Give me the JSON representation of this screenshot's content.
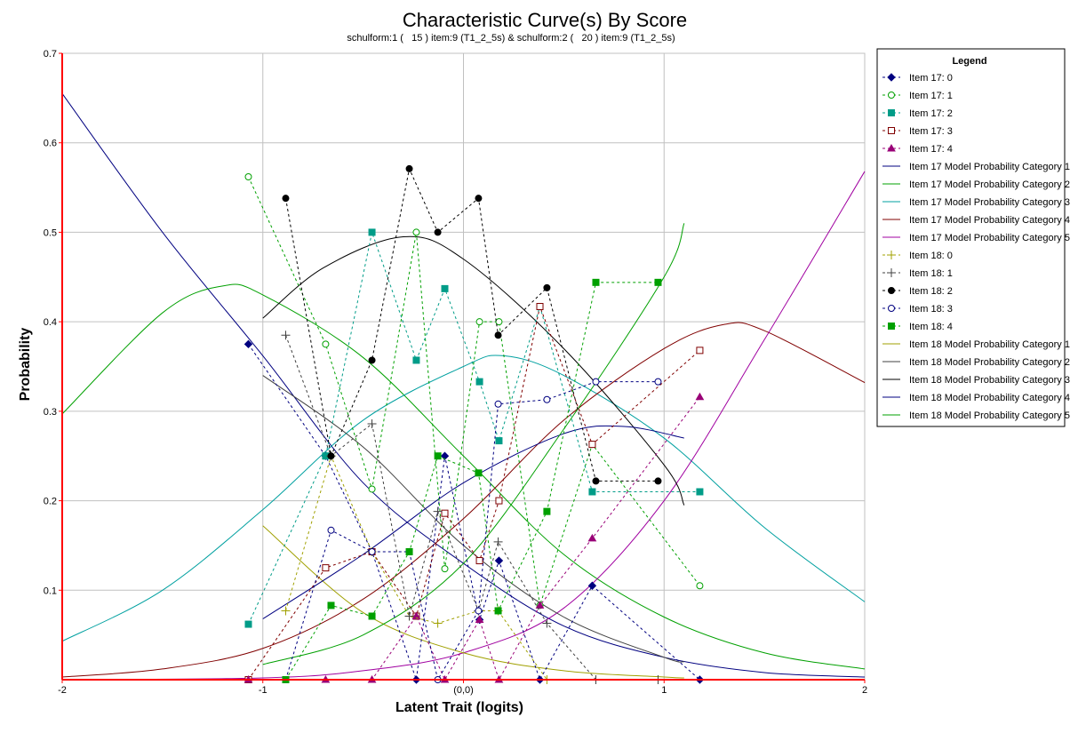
{
  "chart_data": {
    "type": "line",
    "title": "Characteristic Curve(s) By Score",
    "subtitle": "schulform:1 (   15 ) item:9 (T1_2_5s) & schulform:2 (   20 ) item:9 (T1_2_5s)",
    "xlabel": "Latent Trait (logits)",
    "ylabel": "Probability",
    "xlim": [
      -2,
      2
    ],
    "ylim": [
      0,
      0.7
    ],
    "xticks": [
      {
        "v": -2,
        "label": "-2"
      },
      {
        "v": -1,
        "label": "-1"
      },
      {
        "v": 0,
        "label": "(0,0)"
      },
      {
        "v": 1,
        "label": "1"
      },
      {
        "v": 2,
        "label": "2"
      }
    ],
    "yticks": [
      {
        "v": 0.1,
        "label": "0.1"
      },
      {
        "v": 0.2,
        "label": "0.2"
      },
      {
        "v": 0.3,
        "label": "0.3"
      },
      {
        "v": 0.4,
        "label": "0.4"
      },
      {
        "v": 0.5,
        "label": "0.5"
      },
      {
        "v": 0.6,
        "label": "0.6"
      },
      {
        "v": 0.7,
        "label": "0.7"
      }
    ],
    "grid": true,
    "legend": {
      "title": "Legend",
      "placement": "right"
    },
    "observed": [
      {
        "name": "Item 17: 0",
        "color": "#000080",
        "marker": "diamond",
        "fill": true,
        "x": [
          -1.072,
          -0.687,
          -0.456,
          -0.235,
          -0.093,
          0.08,
          0.177,
          0.381,
          0.642,
          1.178
        ],
        "y": [
          0.375,
          0.25,
          0.143,
          0.0,
          0.25,
          0.067,
          0.133,
          0.0,
          0.105,
          0.0
        ]
      },
      {
        "name": "Item 17: 1",
        "color": "#00a000",
        "marker": "circle",
        "fill": false,
        "x": [
          -1.072,
          -0.687,
          -0.456,
          -0.235,
          -0.093,
          0.08,
          0.177,
          0.381,
          0.642,
          1.178
        ],
        "y": [
          0.562,
          0.375,
          0.213,
          0.5,
          0.124,
          0.4,
          0.4,
          0.083,
          0.263,
          0.105
        ]
      },
      {
        "name": "Item 17: 2",
        "color": "#009c88",
        "marker": "square",
        "fill": true,
        "x": [
          -1.072,
          -0.687,
          -0.456,
          -0.235,
          -0.093,
          0.08,
          0.177,
          0.381,
          0.642,
          1.178
        ],
        "y": [
          0.062,
          0.25,
          0.5,
          0.357,
          0.437,
          0.333,
          0.267,
          0.417,
          0.21,
          0.21
        ]
      },
      {
        "name": "Item 17: 3",
        "color": "#800000",
        "marker": "square",
        "fill": false,
        "x": [
          -1.072,
          -0.687,
          -0.456,
          -0.235,
          -0.093,
          0.08,
          0.177,
          0.381,
          0.642,
          1.178
        ],
        "y": [
          0.0,
          0.125,
          0.143,
          0.071,
          0.186,
          0.133,
          0.2,
          0.417,
          0.263,
          0.368
        ]
      },
      {
        "name": "Item 17: 4",
        "color": "#990077",
        "marker": "triangle",
        "fill": true,
        "x": [
          -1.072,
          -0.687,
          -0.456,
          -0.235,
          -0.093,
          0.08,
          0.177,
          0.381,
          0.642,
          1.178
        ],
        "y": [
          0.0,
          0.0,
          0.0,
          0.071,
          0.0,
          0.067,
          0.0,
          0.083,
          0.158,
          0.316
        ]
      },
      {
        "name": "Item 18: 0",
        "color": "#a0a000",
        "marker": "plus",
        "fill": false,
        "x": [
          -0.886,
          -0.66,
          -0.456,
          -0.27,
          -0.128,
          0.075,
          0.173,
          0.416,
          0.66,
          0.97
        ],
        "y": [
          0.077,
          0.25,
          0.143,
          0.071,
          0.063,
          0.077,
          0.077,
          0.0,
          0.0,
          0.0
        ]
      },
      {
        "name": "Item 18: 1",
        "color": "#404040",
        "marker": "plus",
        "fill": false,
        "x": [
          -0.886,
          -0.66,
          -0.456,
          -0.27,
          -0.128,
          0.075,
          0.173,
          0.416,
          0.66,
          0.97
        ],
        "y": [
          0.385,
          0.25,
          0.286,
          0.071,
          0.188,
          0.077,
          0.154,
          0.063,
          0.0,
          0.0
        ]
      },
      {
        "name": "Item 18: 2",
        "color": "#000000",
        "marker": "dot",
        "fill": true,
        "x": [
          -0.886,
          -0.66,
          -0.456,
          -0.27,
          -0.128,
          0.075,
          0.173,
          0.416,
          0.66,
          0.97
        ],
        "y": [
          0.538,
          0.25,
          0.357,
          0.571,
          0.5,
          0.538,
          0.385,
          0.438,
          0.222,
          0.222
        ]
      },
      {
        "name": "Item 18: 3",
        "color": "#000080",
        "marker": "circle",
        "fill": false,
        "x": [
          -0.886,
          -0.66,
          -0.456,
          -0.27,
          -0.128,
          0.075,
          0.173,
          0.416,
          0.66,
          0.97
        ],
        "y": [
          0.0,
          0.167,
          0.143,
          0.143,
          0.0,
          0.077,
          0.308,
          0.313,
          0.333,
          0.333
        ]
      },
      {
        "name": "Item 18: 4",
        "color": "#00a000",
        "marker": "square",
        "fill": true,
        "x": [
          -0.886,
          -0.66,
          -0.456,
          -0.27,
          -0.128,
          0.075,
          0.173,
          0.416,
          0.66,
          0.97
        ],
        "y": [
          0.0,
          0.083,
          0.071,
          0.143,
          0.25,
          0.231,
          0.077,
          0.188,
          0.444,
          0.444
        ]
      }
    ],
    "model": [
      {
        "name": "Item 17 Model Probability Category 1",
        "color": "#000080",
        "x": [
          -2,
          -1.5,
          -1,
          -0.5,
          0,
          0.5,
          1,
          1.5,
          2
        ],
        "y": [
          0.655,
          0.5,
          0.362,
          0.22,
          0.13,
          0.06,
          0.025,
          0.008,
          0.003
        ]
      },
      {
        "name": "Item 17 Model Probability Category 2",
        "color": "#00a000",
        "x": [
          -2,
          -1.5,
          -1.2,
          -1,
          -0.5,
          0,
          0.5,
          1,
          1.5,
          2
        ],
        "y": [
          0.297,
          0.41,
          0.44,
          0.43,
          0.36,
          0.25,
          0.14,
          0.07,
          0.03,
          0.012
        ]
      },
      {
        "name": "Item 17 Model Probability Category 3",
        "color": "#00a0a0",
        "x": [
          -2,
          -1.5,
          -1,
          -0.5,
          0,
          0.2,
          0.5,
          1,
          1.5,
          2
        ],
        "y": [
          0.043,
          0.1,
          0.19,
          0.29,
          0.35,
          0.362,
          0.34,
          0.27,
          0.17,
          0.087
        ]
      },
      {
        "name": "Item 17 Model Probability Category 4",
        "color": "#800000",
        "x": [
          -2,
          -1.5,
          -1,
          -0.5,
          0,
          0.5,
          1,
          1.3,
          1.5,
          2
        ],
        "y": [
          0.003,
          0.012,
          0.035,
          0.09,
          0.18,
          0.29,
          0.37,
          0.397,
          0.39,
          0.332
        ]
      },
      {
        "name": "Item 17 Model Probability Category 5",
        "color": "#a000a0",
        "x": [
          -2,
          -1,
          -0.5,
          0,
          0.5,
          1,
          1.5,
          2
        ],
        "y": [
          0.0,
          0.002,
          0.01,
          0.03,
          0.08,
          0.2,
          0.38,
          0.568
        ]
      },
      {
        "name": "Item 18 Model Probability Category 1",
        "color": "#a0a000",
        "x": [
          -1,
          -0.5,
          0,
          0.5,
          1,
          1.1
        ],
        "y": [
          0.172,
          0.075,
          0.03,
          0.01,
          0.003,
          0.002
        ]
      },
      {
        "name": "Item 18 Model Probability Category 2",
        "color": "#404040",
        "x": [
          -1,
          -0.5,
          0,
          0.5,
          1,
          1.1
        ],
        "y": [
          0.34,
          0.26,
          0.15,
          0.07,
          0.025,
          0.02
        ]
      },
      {
        "name": "Item 18 Model Probability Category 3",
        "color": "#000000",
        "x": [
          -1,
          -0.7,
          -0.3,
          0,
          0.5,
          1,
          1.1
        ],
        "y": [
          0.404,
          0.46,
          0.495,
          0.47,
          0.37,
          0.24,
          0.195
        ]
      },
      {
        "name": "Item 18 Model Probability Category 4",
        "color": "#000080",
        "x": [
          -1,
          -0.5,
          0,
          0.5,
          0.8,
          1.1
        ],
        "y": [
          0.068,
          0.14,
          0.22,
          0.275,
          0.283,
          0.27
        ]
      },
      {
        "name": "Item 18 Model Probability Category 5",
        "color": "#00a000",
        "x": [
          -1,
          -0.5,
          0,
          0.5,
          1,
          1.1
        ],
        "y": [
          0.017,
          0.05,
          0.13,
          0.28,
          0.45,
          0.51
        ]
      }
    ],
    "legend_order": [
      "Item 17: 0",
      "Item 17: 1",
      "Item 17: 2",
      "Item 17: 3",
      "Item 17: 4",
      "Item 17 Model Probability Category 1",
      "Item 17 Model Probability Category 2",
      "Item 17 Model Probability Category 3",
      "Item 17 Model Probability Category 4",
      "Item 17 Model Probability Category 5",
      "Item 18: 0",
      "Item 18: 1",
      "Item 18: 2",
      "Item 18: 3",
      "Item 18: 4",
      "Item 18 Model Probability Category 1",
      "Item 18 Model Probability Category 2",
      "Item 18 Model Probability Category 3",
      "Item 18 Model Probability Category 4",
      "Item 18 Model Probability Category 5"
    ],
    "colors": {
      "axis": "#ff0000",
      "grid": "#c0c0c0"
    }
  }
}
